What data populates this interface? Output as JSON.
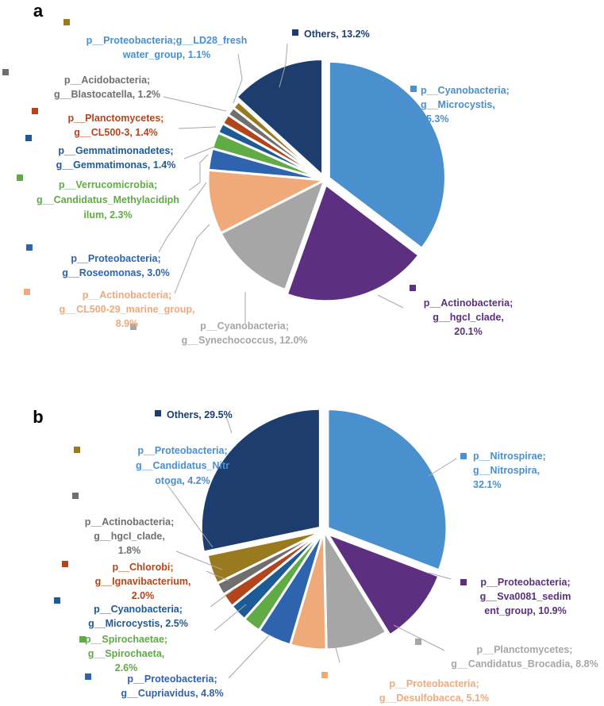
{
  "chart_data": [
    {
      "type": "pie",
      "panel_label": "a",
      "start": "12 o'clock",
      "direction": "clockwise",
      "slices": [
        {
          "lines": [
            "p__Cyanobacteria;",
            "g__Microcystis,",
            "35.3%"
          ],
          "value": 35.3,
          "color": "#4a8fce",
          "label_color": "#4a8fce"
        },
        {
          "lines": [
            "p__Actinobacteria;",
            "g__hgcI_clade,",
            "20.1%"
          ],
          "value": 20.1,
          "color": "#5c2f80",
          "label_color": "#5c2f80"
        },
        {
          "lines": [
            "p__Cyanobacteria;",
            "g__Synechococcus,  12.0%"
          ],
          "value": 12.0,
          "color": "#a6a6a6",
          "label_color": "#a6a6a6"
        },
        {
          "lines": [
            "p__Actinobacteria;",
            "g__CL500-29_marine_group,",
            "8.9%"
          ],
          "value": 8.9,
          "color": "#f0a978",
          "label_color": "#f0a978"
        },
        {
          "lines": [
            "p__Proteobacteria;",
            "g__Roseomonas,  3.0%"
          ],
          "value": 3.0,
          "color": "#2e63ad",
          "label_color": "#2e63ad"
        },
        {
          "lines": [
            "p__Verrucomicrobia;",
            "g__Candidatus_Methylacidiph",
            "ilum,  2.3%"
          ],
          "value": 2.3,
          "color": "#60ab45",
          "label_color": "#60ab45"
        },
        {
          "lines": [
            "p__Gemmatimonadetes;",
            "g__Gemmatimonas,  1.4%"
          ],
          "value": 1.4,
          "color": "#1e5b96",
          "label_color": "#1e5b96"
        },
        {
          "lines": [
            "p__Planctomycetes;",
            "g__CL500-3,  1.4%"
          ],
          "value": 1.4,
          "color": "#b2451b",
          "label_color": "#b2451b"
        },
        {
          "lines": [
            "p__Acidobacteria;",
            "g__Blastocatella,  1.2%"
          ],
          "value": 1.2,
          "color": "#6f6f6f",
          "label_color": "#6f6f6f"
        },
        {
          "lines": [
            "p__Proteobacteria;g__LD28_fresh",
            "water_group,  1.1%"
          ],
          "value": 1.1,
          "color": "#9a7a1f",
          "label_color": "#4a8fce"
        },
        {
          "lines": [
            "Others,  13.2%"
          ],
          "value": 13.2,
          "color": "#1c3d6e",
          "label_color": "#1c3d6e"
        }
      ]
    },
    {
      "type": "pie",
      "panel_label": "b",
      "start": "12 o'clock",
      "direction": "clockwise",
      "slices": [
        {
          "lines": [
            "p__Nitrospirae;",
            "g__Nitrospira,",
            "32.1%"
          ],
          "value": 32.1,
          "color": "#4a8fce",
          "label_color": "#4a8fce"
        },
        {
          "lines": [
            "p__Proteobacteria;",
            "g__Sva0081_sedim",
            "ent_group,  10.9%"
          ],
          "value": 10.9,
          "color": "#5c2f80",
          "label_color": "#5c2f80"
        },
        {
          "lines": [
            "p__Planctomycetes;",
            "g__Candidatus_Brocadia,  8.8%"
          ],
          "value": 8.8,
          "color": "#a6a6a6",
          "label_color": "#a6a6a6"
        },
        {
          "lines": [
            "p__Proteobacteria;",
            "g__Desulfobacca,  5.1%"
          ],
          "value": 5.1,
          "color": "#f0a978",
          "label_color": "#f0a978"
        },
        {
          "lines": [
            "p__Proteobacteria;",
            "g__Cupriavidus,  4.8%"
          ],
          "value": 4.8,
          "color": "#2e63ad",
          "label_color": "#2e63ad"
        },
        {
          "lines": [
            "p__Spirochaetae;",
            "g__Spirochaeta,",
            "2.6%"
          ],
          "value": 2.6,
          "color": "#60ab45",
          "label_color": "#60ab45"
        },
        {
          "lines": [
            "p__Cyanobacteria;",
            "g__Microcystis,  2.5%"
          ],
          "value": 2.5,
          "color": "#1e5b96",
          "label_color": "#1e5b96"
        },
        {
          "lines": [
            "p__Chlorobi;",
            "g__Ignavibacterium,",
            "2.0%"
          ],
          "value": 2.0,
          "color": "#b2451b",
          "label_color": "#b2451b"
        },
        {
          "lines": [
            "p__Actinobacteria;",
            "g__hgcI_clade,",
            "1.8%"
          ],
          "value": 1.8,
          "color": "#6f6f6f",
          "label_color": "#6f6f6f"
        },
        {
          "lines": [
            "p__Proteobacteria;",
            "g__Candidatus_Nitr",
            "otoga,  4.2%"
          ],
          "value": 4.2,
          "color": "#9a7a1f",
          "label_color": "#4a8fce"
        },
        {
          "lines": [
            "Others,  29.5%"
          ],
          "value": 29.5,
          "color": "#1c3d6e",
          "label_color": "#1c3d6e"
        }
      ]
    }
  ]
}
